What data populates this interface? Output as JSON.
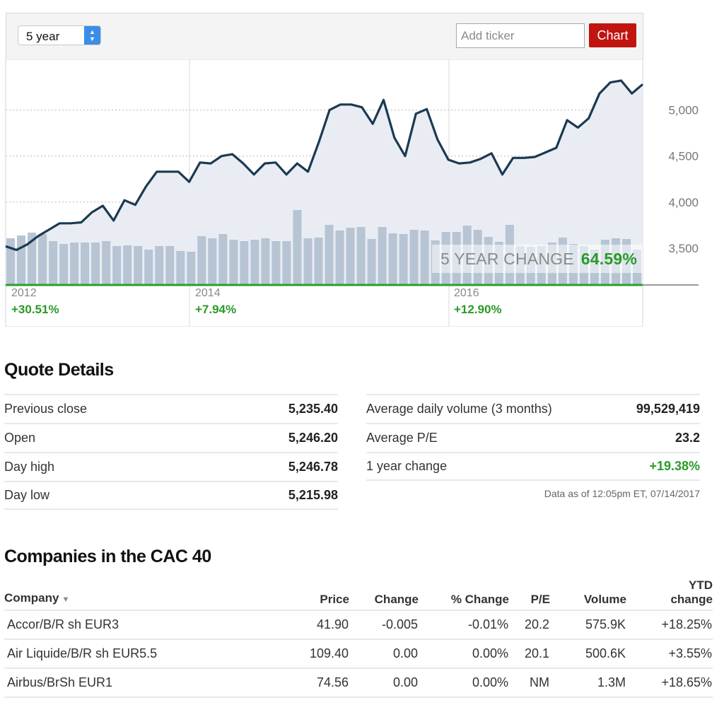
{
  "toolbar": {
    "range_value": "5 year",
    "ticker_placeholder": "Add ticker",
    "chart_button_label": "Chart"
  },
  "chart_data": {
    "type": "line",
    "x_period_labels": [
      "2012",
      "2014",
      "2016"
    ],
    "period_changes": [
      "+30.51%",
      "+7.94%",
      "+12.90%"
    ],
    "y_ticks": [
      "5,000",
      "4,500",
      "4,000",
      "3,500"
    ],
    "ylim": [
      3100,
      5550
    ],
    "change_label": "5 YEAR CHANGE",
    "change_value": "64.59%",
    "line_color": "#1b3a52",
    "fill_color": "#e9edf3",
    "volume_color": "#b7c4d4",
    "baseline_color": "#2aa02a",
    "series": [
      {
        "values": [
          3520,
          3480,
          3540,
          3630,
          3700,
          3770,
          3770,
          3780,
          3890,
          3960,
          3800,
          4020,
          3970,
          4170,
          4330,
          4330,
          4330,
          4220,
          4430,
          4420,
          4500,
          4520,
          4420,
          4300,
          4420,
          4430,
          4300,
          4420,
          4330,
          4650,
          5000,
          5060,
          5060,
          5030,
          4850,
          5110,
          4700,
          4500,
          4960,
          5010,
          4680,
          4460,
          4420,
          4430,
          4470,
          4530,
          4300,
          4480,
          4480,
          4490,
          4540,
          4590,
          4890,
          4810,
          4910,
          5180,
          5300,
          5320,
          5180,
          5280
        ]
      }
    ],
    "volume": [
      66,
      70,
      74,
      72,
      62,
      58,
      60,
      60,
      60,
      62,
      55,
      56,
      55,
      50,
      55,
      55,
      48,
      47,
      69,
      66,
      72,
      64,
      62,
      64,
      66,
      62,
      62,
      106,
      66,
      67,
      85,
      77,
      81,
      82,
      65,
      82,
      73,
      72,
      78,
      77,
      63,
      75,
      75,
      84,
      78,
      68,
      61,
      85,
      55,
      54,
      55,
      60,
      67,
      58,
      55,
      50,
      64,
      66,
      65,
      50
    ]
  },
  "quote": {
    "title": "Quote Details",
    "left": [
      {
        "label": "Previous close",
        "value": "5,235.40"
      },
      {
        "label": "Open",
        "value": "5,246.20"
      },
      {
        "label": "Day high",
        "value": "5,246.78"
      },
      {
        "label": "Day low",
        "value": "5,215.98"
      }
    ],
    "right": [
      {
        "label": "Average daily volume (3 months)",
        "value": "99,529,419"
      },
      {
        "label": "Average P/E",
        "value": "23.2"
      },
      {
        "label": "1 year change",
        "value": "+19.38%"
      }
    ],
    "asof": "Data as of 12:05pm ET, 07/14/2017"
  },
  "companies": {
    "title": "Companies in the CAC 40",
    "headers": {
      "company": "Company",
      "price": "Price",
      "change": "Change",
      "pct_change": "% Change",
      "pe": "P/E",
      "volume": "Volume",
      "ytd_line1": "YTD",
      "ytd_line2": "change"
    },
    "rows": [
      {
        "company": "Accor/B/R sh EUR3",
        "price": "41.90",
        "change": "-0.005",
        "pct_change": "-0.01%",
        "pe": "20.2",
        "volume": "575.9K",
        "ytd": "+18.25%"
      },
      {
        "company": "Air Liquide/B/R sh EUR5.5",
        "price": "109.40",
        "change": "0.00",
        "pct_change": "0.00%",
        "pe": "20.1",
        "volume": "500.6K",
        "ytd": "+3.55%"
      },
      {
        "company": "Airbus/BrSh EUR1",
        "price": "74.56",
        "change": "0.00",
        "pct_change": "0.00%",
        "pe": "NM",
        "volume": "1.3M",
        "ytd": "+18.65%"
      }
    ]
  }
}
